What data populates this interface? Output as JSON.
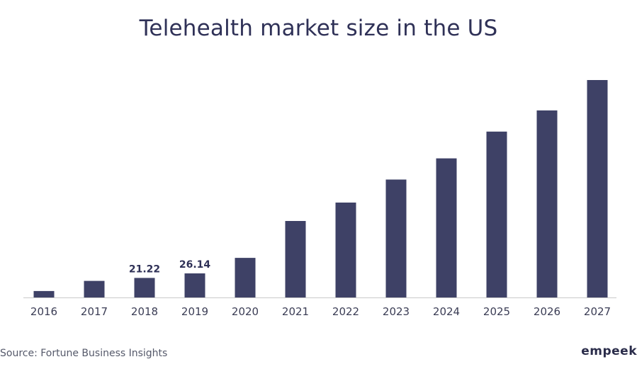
{
  "title": "Telehealth market size in the US",
  "source": "Source: Fortune Business Insights",
  "brand": "empeek",
  "colors": {
    "bar": "#3e4166",
    "axis": "#c9c9c9",
    "text": "#2f3157",
    "tick": "#3b3d55"
  },
  "chart_data": {
    "type": "bar",
    "title": "Telehealth market size in the US",
    "categories": [
      "2016",
      "2017",
      "2018",
      "2019",
      "2020",
      "2021",
      "2022",
      "2023",
      "2024",
      "2025",
      "2026",
      "2027"
    ],
    "values": [
      7.0,
      18.0,
      21.22,
      26.14,
      43.0,
      83.0,
      103.0,
      128.0,
      151.0,
      180.0,
      203.0,
      236.0
    ],
    "data_labels": [
      "",
      "",
      "21.22",
      "26.14",
      "",
      "",
      "",
      "",
      "",
      "",
      "",
      ""
    ],
    "ylim": [
      0,
      236
    ],
    "xlabel": "",
    "ylabel": "",
    "grid": false,
    "legend": "none"
  }
}
